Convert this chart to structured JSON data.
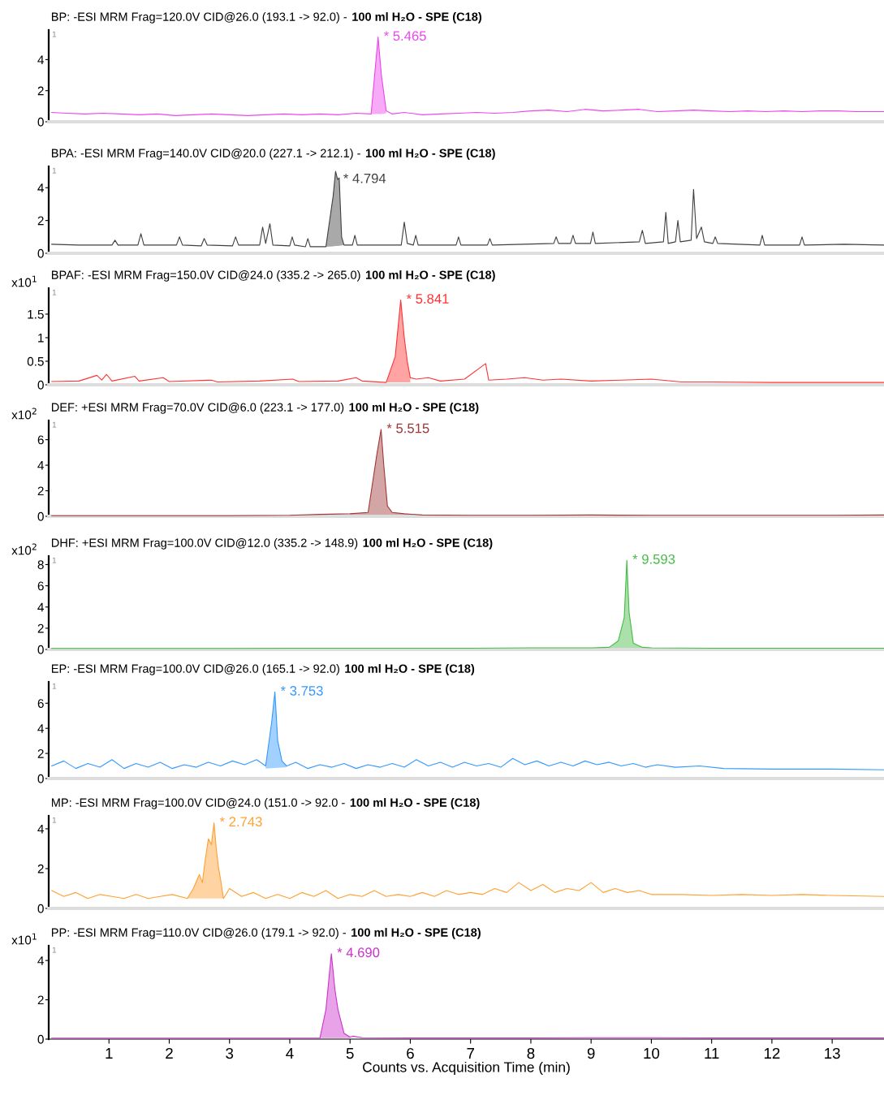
{
  "chart_data": [
    {
      "type": "line",
      "title": "BP: -ESI MRM Frag=120.0V CID@26.0 (193.1 -> 92.0) -",
      "subtitle": "100 ml H₂O - SPE (C18)",
      "xlim": [
        0,
        13.86
      ],
      "ylim": [
        0,
        5.9
      ],
      "yticks": [
        0,
        2,
        4
      ],
      "tick_labels": "y",
      "annotations": [
        "1",
        {
          "text": "* 5.465",
          "x": 5.465,
          "y": 5.45
        }
      ],
      "series": [
        {
          "color": "#ee44ee",
          "x": [
            0.05,
            0.3,
            0.6,
            0.9,
            1.2,
            1.5,
            1.8,
            2.1,
            2.4,
            2.7,
            3.0,
            3.3,
            3.6,
            3.9,
            4.2,
            4.5,
            4.8,
            5.1,
            5.35,
            5.42,
            5.465,
            5.52,
            5.6,
            5.7,
            5.9,
            6.2,
            6.5,
            6.8,
            7.1,
            7.4,
            7.7,
            8.0,
            8.3,
            8.6,
            8.9,
            9.2,
            9.5,
            9.8,
            10.1,
            10.4,
            10.7,
            11.0,
            11.3,
            11.6,
            11.9,
            12.2,
            12.5,
            12.8,
            13.1,
            13.4,
            13.86
          ],
          "values": [
            0.6,
            0.55,
            0.5,
            0.55,
            0.5,
            0.45,
            0.5,
            0.4,
            0.45,
            0.5,
            0.45,
            0.4,
            0.45,
            0.5,
            0.45,
            0.5,
            0.45,
            0.55,
            0.5,
            3.5,
            5.45,
            3.0,
            0.7,
            0.5,
            0.6,
            0.45,
            0.5,
            0.55,
            0.6,
            0.55,
            0.6,
            0.7,
            0.75,
            0.65,
            0.8,
            0.7,
            0.75,
            0.8,
            0.65,
            0.7,
            0.75,
            0.7,
            0.65,
            0.7,
            0.65,
            0.7,
            0.65,
            0.7,
            0.7,
            0.65,
            0.65
          ],
          "lower": [
            null,
            null,
            null,
            null,
            null,
            null,
            null,
            null,
            null,
            null,
            null,
            null,
            null,
            null,
            null,
            null,
            null,
            null,
            0.5,
            0.5,
            0.5,
            0.5,
            0.55,
            null,
            null,
            null,
            null,
            null,
            null,
            null,
            null,
            null,
            null,
            null,
            null,
            null,
            null,
            null,
            null,
            null,
            null,
            null,
            null,
            null,
            null,
            null,
            null,
            null,
            null,
            null,
            null
          ],
          "upper": [
            null,
            null,
            null,
            null,
            null,
            null,
            null,
            null,
            null,
            null,
            null,
            null,
            null,
            null,
            null,
            null,
            null,
            null,
            0.5,
            3.5,
            5.45,
            3.0,
            0.7,
            null,
            null,
            null,
            null,
            null,
            null,
            null,
            null,
            null,
            null,
            null,
            null,
            null,
            null,
            null,
            null,
            null,
            null,
            null,
            null,
            null,
            null,
            null,
            null,
            null,
            null,
            null,
            null
          ]
        }
      ]
    },
    {
      "type": "line",
      "title": "BPA: -ESI MRM Frag=140.0V CID@20.0 (227.1 -> 212.1) -",
      "subtitle": "100 ml H₂O - SPE (C18)",
      "xlim": [
        0,
        13.86
      ],
      "ylim": [
        0,
        5.3
      ],
      "yticks": [
        0,
        2,
        4
      ],
      "tick_labels": "y",
      "annotations": [
        "1",
        {
          "text": "* 4.794",
          "x": 4.794,
          "y": 4.5
        }
      ],
      "series": [
        {
          "color": "#404040",
          "x": [
            0.05,
            0.5,
            1.05,
            1.1,
            1.15,
            1.48,
            1.53,
            1.58,
            2.12,
            2.17,
            2.22,
            2.53,
            2.58,
            2.63,
            3.05,
            3.1,
            3.15,
            3.5,
            3.55,
            3.6,
            3.67,
            3.72,
            4.0,
            4.04,
            4.08,
            4.26,
            4.3,
            4.34,
            4.6,
            4.72,
            4.76,
            4.794,
            4.82,
            4.86,
            4.9,
            5.04,
            5.08,
            5.12,
            5.85,
            5.9,
            5.95,
            6.05,
            6.09,
            6.13,
            6.76,
            6.8,
            6.84,
            7.28,
            7.32,
            7.36,
            8.38,
            8.42,
            8.46,
            8.66,
            8.7,
            8.74,
            8.99,
            9.03,
            9.07,
            9.8,
            9.85,
            9.9,
            10.2,
            10.24,
            10.28,
            10.4,
            10.44,
            10.48,
            10.66,
            10.7,
            10.75,
            10.83,
            10.88,
            11.02,
            11.06,
            11.1,
            11.8,
            11.84,
            11.88,
            12.46,
            12.5,
            12.54,
            13.2,
            13.86
          ],
          "values": [
            0.55,
            0.5,
            0.5,
            0.8,
            0.5,
            0.5,
            1.2,
            0.5,
            0.5,
            1.0,
            0.5,
            0.45,
            0.9,
            0.5,
            0.45,
            1.0,
            0.5,
            0.5,
            1.6,
            0.6,
            1.8,
            0.5,
            0.45,
            1.0,
            0.5,
            0.4,
            0.9,
            0.4,
            0.4,
            3.5,
            5.0,
            4.5,
            4.6,
            1.0,
            0.5,
            0.5,
            1.1,
            0.5,
            0.5,
            1.9,
            0.6,
            0.5,
            1.1,
            0.5,
            0.5,
            1.0,
            0.5,
            0.5,
            0.9,
            0.5,
            0.6,
            1.0,
            0.6,
            0.6,
            1.1,
            0.6,
            0.6,
            1.3,
            0.6,
            0.7,
            1.4,
            0.6,
            0.7,
            2.5,
            0.6,
            0.7,
            2.0,
            0.7,
            0.8,
            3.9,
            0.9,
            1.6,
            0.7,
            0.6,
            1.0,
            0.6,
            0.5,
            1.1,
            0.5,
            0.5,
            1.0,
            0.5,
            0.55,
            0.5
          ],
          "lower": [
            null,
            null,
            null,
            null,
            null,
            null,
            null,
            null,
            null,
            null,
            null,
            null,
            null,
            null,
            null,
            null,
            null,
            null,
            null,
            null,
            null,
            null,
            null,
            null,
            null,
            null,
            null,
            null,
            0.4,
            0.42,
            0.44,
            0.45,
            0.46,
            0.48,
            0.5,
            null,
            null,
            null,
            null,
            null,
            null,
            null,
            null,
            null,
            null,
            null,
            null,
            null,
            null,
            null,
            null,
            null,
            null,
            null,
            null,
            null,
            null,
            null,
            null,
            null,
            null,
            null,
            null,
            null,
            null,
            null,
            null,
            null,
            null,
            null,
            null,
            null,
            null,
            null,
            null,
            null,
            null,
            null,
            null,
            null,
            null,
            null,
            null,
            null
          ],
          "upper": [
            null,
            null,
            null,
            null,
            null,
            null,
            null,
            null,
            null,
            null,
            null,
            null,
            null,
            null,
            null,
            null,
            null,
            null,
            null,
            null,
            null,
            null,
            null,
            null,
            null,
            null,
            null,
            null,
            0.4,
            3.5,
            5.0,
            4.5,
            4.6,
            1.0,
            0.5,
            null,
            null,
            null,
            null,
            null,
            null,
            null,
            null,
            null,
            null,
            null,
            null,
            null,
            null,
            null,
            null,
            null,
            null,
            null,
            null,
            null,
            null,
            null,
            null,
            null,
            null,
            null,
            null,
            null,
            null,
            null,
            null,
            null,
            null,
            null,
            null,
            null,
            null,
            null,
            null,
            null,
            null,
            null,
            null,
            null,
            null,
            null,
            null,
            null
          ]
        }
      ]
    },
    {
      "type": "line",
      "title": "BPAF: -ESI MRM Frag=150.0V CID@24.0 (335.2 -> 265.0)",
      "subtitle": "100 ml H₂O - SPE (C18)",
      "ylabel": "x10$^{1}$",
      "xlim": [
        0,
        13.86
      ],
      "ylim": [
        0,
        2.05
      ],
      "yticks": [
        0,
        0.5,
        1,
        1.5
      ],
      "tick_labels": "y",
      "annotations": [
        "1",
        {
          "text": "* 5.841",
          "x": 5.841,
          "y": 1.8
        }
      ],
      "series": [
        {
          "color": "#ff3333",
          "x": [
            0.05,
            0.5,
            0.8,
            0.88,
            0.96,
            1.05,
            1.43,
            1.5,
            1.9,
            2.0,
            2.7,
            2.8,
            3.5,
            4.05,
            4.15,
            4.8,
            5.1,
            5.2,
            5.6,
            5.75,
            5.841,
            5.9,
            5.95,
            6.0,
            6.1,
            6.3,
            6.5,
            6.9,
            7.25,
            7.3,
            7.6,
            7.9,
            8.2,
            8.5,
            9.0,
            9.5,
            10.0,
            10.5,
            11.0,
            12.0,
            13.0,
            13.86
          ],
          "values": [
            0.07,
            0.08,
            0.2,
            0.1,
            0.22,
            0.08,
            0.18,
            0.08,
            0.15,
            0.07,
            0.1,
            0.06,
            0.08,
            0.12,
            0.07,
            0.08,
            0.15,
            0.08,
            0.05,
            0.6,
            1.8,
            1.0,
            0.5,
            0.15,
            0.12,
            0.15,
            0.08,
            0.12,
            0.45,
            0.1,
            0.12,
            0.15,
            0.1,
            0.12,
            0.08,
            0.1,
            0.12,
            0.06,
            0.06,
            0.05,
            0.05,
            0.05
          ],
          "lower": [
            null,
            null,
            null,
            null,
            null,
            null,
            null,
            null,
            null,
            null,
            null,
            null,
            null,
            null,
            null,
            null,
            null,
            null,
            0.05,
            0.05,
            0.05,
            0.05,
            0.05,
            0.05,
            null,
            null,
            null,
            null,
            null,
            null,
            null,
            null,
            null,
            null,
            null,
            null,
            null,
            null,
            null,
            null,
            null,
            null
          ],
          "upper": [
            null,
            null,
            null,
            null,
            null,
            null,
            null,
            null,
            null,
            null,
            null,
            null,
            null,
            null,
            null,
            null,
            null,
            null,
            0.05,
            0.6,
            1.8,
            1.0,
            0.5,
            0.15,
            null,
            null,
            null,
            null,
            null,
            null,
            null,
            null,
            null,
            null,
            null,
            null,
            null,
            null,
            null,
            null,
            null,
            null
          ]
        }
      ]
    },
    {
      "type": "line",
      "title": "DEF: +ESI MRM Frag=70.0V CID@6.0 (223.1 -> 177.0)",
      "subtitle": "100 ml H₂O - SPE (C18)",
      "ylabel": "x10$^{2}$",
      "xlim": [
        0,
        13.86
      ],
      "ylim": [
        0,
        7.5
      ],
      "yticks": [
        0,
        2,
        4,
        6
      ],
      "tick_labels": "y",
      "annotations": [
        "1",
        {
          "text": "* 5.515",
          "x": 5.515,
          "y": 6.8
        }
      ],
      "series": [
        {
          "color": "#a03838",
          "x": [
            0.05,
            1.0,
            2.0,
            3.0,
            4.0,
            4.5,
            5.0,
            5.3,
            5.45,
            5.515,
            5.56,
            5.62,
            5.7,
            5.9,
            6.2,
            7.0,
            8.0,
            9.0,
            10.0,
            11.0,
            12.0,
            13.0,
            13.86
          ],
          "values": [
            0.05,
            0.05,
            0.05,
            0.05,
            0.08,
            0.15,
            0.2,
            0.3,
            5.0,
            6.8,
            4.0,
            0.8,
            0.3,
            0.2,
            0.1,
            0.08,
            0.08,
            0.1,
            0.08,
            0.08,
            0.08,
            0.08,
            0.1
          ],
          "lower": [
            null,
            null,
            null,
            null,
            null,
            null,
            0.05,
            0.05,
            0.05,
            0.05,
            0.05,
            0.05,
            0.05,
            0.05,
            0.05,
            null,
            null,
            null,
            null,
            null,
            null,
            null,
            null
          ],
          "upper": [
            null,
            null,
            null,
            null,
            null,
            null,
            0.2,
            0.3,
            5.0,
            6.8,
            4.0,
            0.8,
            0.3,
            0.2,
            0.1,
            null,
            null,
            null,
            null,
            null,
            null,
            null,
            null
          ]
        }
      ]
    },
    {
      "type": "line",
      "title": "DHF: +ESI MRM Frag=100.0V CID@12.0 (335.2 -> 148.9)",
      "subtitle": "100 ml H₂O - SPE (C18)",
      "ylabel": "x10$^{2}$",
      "xlim": [
        0,
        13.86
      ],
      "ylim": [
        0,
        8.8
      ],
      "yticks": [
        0,
        2,
        4,
        6,
        8
      ],
      "tick_labels": "y",
      "annotations": [
        "1",
        {
          "text": "* 9.593",
          "x": 9.593,
          "y": 8.4
        }
      ],
      "series": [
        {
          "color": "#44bb44",
          "x": [
            0.05,
            1,
            2,
            3,
            4,
            5,
            6,
            7,
            8,
            8.5,
            9.0,
            9.3,
            9.45,
            9.55,
            9.593,
            9.63,
            9.7,
            9.85,
            10.0,
            11,
            12,
            13,
            13.86
          ],
          "values": [
            0.1,
            0.1,
            0.1,
            0.1,
            0.12,
            0.12,
            0.12,
            0.12,
            0.15,
            0.15,
            0.15,
            0.2,
            0.8,
            3.0,
            8.4,
            3.5,
            0.6,
            0.2,
            0.15,
            0.12,
            0.12,
            0.12,
            0.12
          ],
          "lower": [
            null,
            null,
            null,
            null,
            null,
            null,
            null,
            null,
            null,
            null,
            null,
            0.1,
            0.1,
            0.1,
            0.1,
            0.1,
            0.1,
            0.1,
            0.1,
            null,
            null,
            null,
            null
          ],
          "upper": [
            null,
            null,
            null,
            null,
            null,
            null,
            null,
            null,
            null,
            null,
            null,
            0.2,
            0.8,
            3.0,
            8.4,
            3.5,
            0.6,
            0.2,
            0.15,
            null,
            null,
            null,
            null
          ]
        }
      ]
    },
    {
      "type": "line",
      "title": "EP: -ESI MRM Frag=100.0V CID@26.0 (165.1 -> 92.0)",
      "subtitle": "100 ml H₂O - SPE (C18)",
      "xlim": [
        0,
        13.86
      ],
      "ylim": [
        0,
        7.7
      ],
      "yticks": [
        0,
        2,
        4,
        6
      ],
      "tick_labels": "y",
      "annotations": [
        "1",
        {
          "text": "* 3.753",
          "x": 3.753,
          "y": 6.9
        }
      ],
      "series": [
        {
          "color": "#3399ff",
          "x": [
            0.05,
            0.25,
            0.45,
            0.65,
            0.85,
            1.05,
            1.25,
            1.45,
            1.65,
            1.85,
            2.05,
            2.25,
            2.45,
            2.65,
            2.85,
            3.05,
            3.25,
            3.45,
            3.6,
            3.7,
            3.753,
            3.8,
            3.87,
            3.95,
            4.1,
            4.3,
            4.5,
            4.7,
            4.9,
            5.1,
            5.3,
            5.5,
            5.7,
            5.9,
            6.1,
            6.3,
            6.5,
            6.7,
            6.9,
            7.1,
            7.3,
            7.5,
            7.7,
            7.9,
            8.1,
            8.3,
            8.5,
            8.7,
            8.9,
            9.1,
            9.3,
            9.5,
            9.7,
            9.9,
            10.1,
            10.4,
            10.8,
            11.2,
            12.0,
            13.0,
            13.86
          ],
          "values": [
            1.0,
            1.4,
            0.8,
            1.2,
            0.9,
            1.5,
            0.8,
            1.2,
            0.9,
            1.3,
            0.8,
            1.1,
            0.9,
            1.3,
            1.0,
            1.4,
            1.1,
            1.5,
            1.0,
            4.5,
            6.9,
            3.0,
            1.4,
            1.0,
            1.3,
            0.8,
            1.1,
            0.9,
            1.2,
            0.8,
            1.1,
            0.9,
            1.2,
            0.9,
            1.5,
            1.0,
            1.3,
            0.9,
            1.3,
            1.0,
            1.2,
            0.9,
            1.6,
            1.1,
            1.4,
            1.0,
            1.3,
            1.0,
            1.4,
            1.1,
            1.3,
            1.0,
            1.2,
            0.9,
            1.1,
            0.9,
            1.0,
            0.8,
            0.75,
            0.75,
            0.7
          ],
          "lower": [
            null,
            null,
            null,
            null,
            null,
            null,
            null,
            null,
            null,
            null,
            null,
            null,
            null,
            null,
            null,
            null,
            null,
            null,
            0.8,
            0.82,
            0.84,
            0.86,
            0.88,
            0.9,
            null,
            null,
            null,
            null,
            null,
            null,
            null,
            null,
            null,
            null,
            null,
            null,
            null,
            null,
            null,
            null,
            null,
            null,
            null,
            null,
            null,
            null,
            null,
            null,
            null,
            null,
            null,
            null,
            null,
            null,
            null,
            null,
            null,
            null,
            null,
            null,
            null
          ],
          "upper": [
            null,
            null,
            null,
            null,
            null,
            null,
            null,
            null,
            null,
            null,
            null,
            null,
            null,
            null,
            null,
            null,
            null,
            null,
            1.0,
            4.5,
            6.9,
            3.0,
            1.4,
            1.0,
            null,
            null,
            null,
            null,
            null,
            null,
            null,
            null,
            null,
            null,
            null,
            null,
            null,
            null,
            null,
            null,
            null,
            null,
            null,
            null,
            null,
            null,
            null,
            null,
            null,
            null,
            null,
            null,
            null,
            null,
            null,
            null,
            null,
            null,
            null,
            null,
            null
          ]
        }
      ]
    },
    {
      "type": "line",
      "title": "MP: -ESI MRM Frag=100.0V CID@24.0 (151.0 -> 92.0 -",
      "subtitle": "100 ml H₂O - SPE (C18)",
      "xlim": [
        0,
        13.86
      ],
      "ylim": [
        0,
        4.65
      ],
      "yticks": [
        0,
        2,
        4
      ],
      "tick_labels": "y",
      "annotations": [
        "1",
        {
          "text": "* 2.743",
          "x": 2.743,
          "y": 4.3
        }
      ],
      "series": [
        {
          "color": "#ffa030",
          "x": [
            0.05,
            0.25,
            0.45,
            0.65,
            0.85,
            1.05,
            1.25,
            1.45,
            1.65,
            1.85,
            2.05,
            2.3,
            2.4,
            2.5,
            2.55,
            2.6,
            2.65,
            2.7,
            2.743,
            2.78,
            2.82,
            2.85,
            2.9,
            3.0,
            3.2,
            3.4,
            3.6,
            3.8,
            4.0,
            4.2,
            4.4,
            4.6,
            4.8,
            5.0,
            5.2,
            5.4,
            5.6,
            5.8,
            6.0,
            6.2,
            6.4,
            6.6,
            6.8,
            7.0,
            7.2,
            7.4,
            7.6,
            7.8,
            8.0,
            8.2,
            8.4,
            8.6,
            8.8,
            9.0,
            9.2,
            9.4,
            9.6,
            9.8,
            10.0,
            10.5,
            11,
            11.5,
            12,
            12.5,
            13,
            13.86
          ],
          "values": [
            0.9,
            0.6,
            0.8,
            0.5,
            0.7,
            0.6,
            0.5,
            0.7,
            0.5,
            0.6,
            0.7,
            0.5,
            1.0,
            1.7,
            1.3,
            2.5,
            3.5,
            3.2,
            4.3,
            3.0,
            2.0,
            1.5,
            0.5,
            1.0,
            0.6,
            0.8,
            0.5,
            0.7,
            0.5,
            0.8,
            0.6,
            0.9,
            0.5,
            0.7,
            0.6,
            0.9,
            0.6,
            0.7,
            0.6,
            0.8,
            0.6,
            0.9,
            0.7,
            0.8,
            0.7,
            1.0,
            0.8,
            1.3,
            0.9,
            1.2,
            0.8,
            1.0,
            0.9,
            1.3,
            0.8,
            1.0,
            0.8,
            0.9,
            0.7,
            0.7,
            0.65,
            0.7,
            0.65,
            0.7,
            0.65,
            0.6
          ],
          "lower": [
            null,
            null,
            null,
            null,
            null,
            null,
            null,
            null,
            null,
            null,
            null,
            0.5,
            0.5,
            0.5,
            0.5,
            0.5,
            0.5,
            0.5,
            0.5,
            0.5,
            0.5,
            0.5,
            0.5,
            null,
            null,
            null,
            null,
            null,
            null,
            null,
            null,
            null,
            null,
            null,
            null,
            null,
            null,
            null,
            null,
            null,
            null,
            null,
            null,
            null,
            null,
            null,
            null,
            null,
            null,
            null,
            null,
            null,
            null,
            null,
            null,
            null,
            null,
            null,
            null,
            null,
            null,
            null,
            null,
            null,
            null,
            null
          ],
          "upper": [
            null,
            null,
            null,
            null,
            null,
            null,
            null,
            null,
            null,
            null,
            null,
            0.5,
            1.0,
            1.7,
            1.3,
            2.5,
            3.5,
            3.2,
            4.3,
            3.0,
            2.0,
            1.5,
            0.5,
            null,
            null,
            null,
            null,
            null,
            null,
            null,
            null,
            null,
            null,
            null,
            null,
            null,
            null,
            null,
            null,
            null,
            null,
            null,
            null,
            null,
            null,
            null,
            null,
            null,
            null,
            null,
            null,
            null,
            null,
            null,
            null,
            null,
            null,
            null,
            null,
            null,
            null,
            null,
            null,
            null,
            null,
            null
          ]
        }
      ]
    },
    {
      "type": "line",
      "title": "PP: -ESI MRM Frag=110.0V CID@26.0 (179.1 -> 92.0) -",
      "subtitle": "100 ml H₂O - SPE (C18)",
      "ylabel": "x10$^{1}$",
      "xlabel": "Counts vs. Acquisition Time (min)",
      "xlim": [
        0,
        13.86
      ],
      "xticks": [
        1,
        2,
        3,
        4,
        5,
        6,
        7,
        8,
        9,
        10,
        11,
        12,
        13
      ],
      "ylim": [
        0,
        4.75
      ],
      "yticks": [
        0,
        2,
        4
      ],
      "annotations": [
        "1",
        {
          "text": "* 4.690",
          "x": 4.69,
          "y": 4.35
        }
      ],
      "series": [
        {
          "color": "#cc33cc",
          "x": [
            0.05,
            1,
            2,
            3,
            4,
            4.5,
            4.6,
            4.69,
            4.75,
            4.8,
            4.9,
            5.0,
            5.05,
            5.2,
            6,
            7,
            8,
            9,
            10,
            11,
            12,
            13,
            13.86
          ],
          "values": [
            0.05,
            0.05,
            0.05,
            0.05,
            0.05,
            0.05,
            1.5,
            4.35,
            2.5,
            1.5,
            0.3,
            0.1,
            0.15,
            0.07,
            0.06,
            0.06,
            0.06,
            0.07,
            0.07,
            0.06,
            0.06,
            0.06,
            0.06
          ],
          "lower": [
            null,
            null,
            null,
            null,
            null,
            0.05,
            0.05,
            0.05,
            0.05,
            0.05,
            0.05,
            0.05,
            null,
            null,
            null,
            null,
            null,
            null,
            null,
            null,
            null,
            null,
            null
          ],
          "upper": [
            null,
            null,
            null,
            null,
            null,
            0.05,
            1.5,
            4.35,
            2.5,
            1.5,
            0.3,
            0.1,
            null,
            null,
            null,
            null,
            null,
            null,
            null,
            null,
            null,
            null,
            null
          ]
        }
      ]
    }
  ]
}
